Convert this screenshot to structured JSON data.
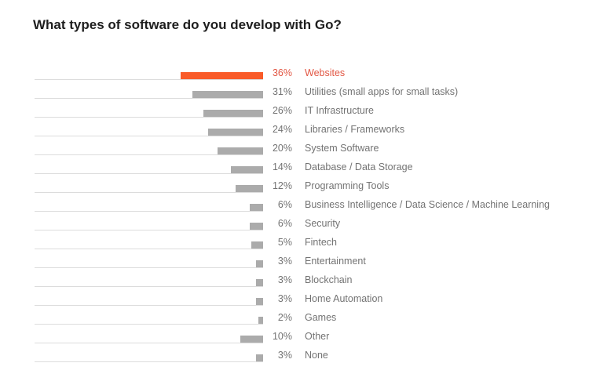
{
  "page": {
    "background": "#ffffff"
  },
  "chart_data": {
    "type": "bar",
    "orientation": "horizontal",
    "bar_alignment": "right",
    "title": "What types of software do you develop with Go?",
    "unit": "%",
    "xlim": [
      0,
      100
    ],
    "grid": false,
    "legend": "none",
    "categories": [
      "Websites",
      "Utilities (small apps for small tasks)",
      "IT Infrastructure",
      "Libraries / Frameworks",
      "System Software",
      "Database / Data Storage",
      "Programming Tools",
      "Business Intelligence / Data Science / Machine Learning",
      "Security",
      "Fintech",
      "Entertainment",
      "Blockchain",
      "Home Automation",
      "Games",
      "Other",
      "None"
    ],
    "values": [
      36,
      31,
      26,
      24,
      20,
      14,
      12,
      6,
      6,
      5,
      3,
      3,
      3,
      2,
      10,
      3
    ],
    "value_labels": [
      "36%",
      "31%",
      "26%",
      "24%",
      "20%",
      "14%",
      "12%",
      "6%",
      "6%",
      "5%",
      "3%",
      "3%",
      "3%",
      "2%",
      "10%",
      "3%"
    ],
    "highlight_index": 0,
    "colors": {
      "bar_default": "#ababab",
      "bar_highlight": "#f95b29",
      "text_default": "#737373",
      "text_highlight": "#e25744",
      "track_line": "#dcdcdc",
      "title_text": "#1e1e1e"
    }
  }
}
